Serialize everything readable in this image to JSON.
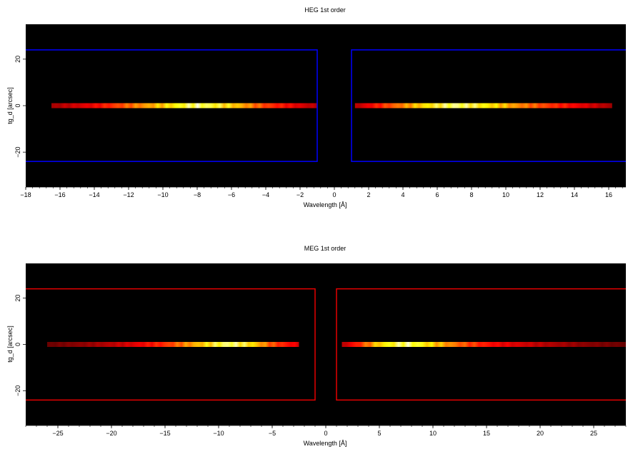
{
  "colors": {
    "background": "#000000",
    "heg_region": "#0000ff",
    "meg_region": "#e60000",
    "colormap": "hot"
  },
  "chart_data": [
    {
      "type": "heatmap",
      "title": "HEG 1st order",
      "xlabel": "Wavelength [Å]",
      "ylabel": "tg_d [arcsec]",
      "xlim": [
        -18,
        17
      ],
      "ylim": [
        -35,
        35
      ],
      "xticks": [
        -18,
        -16,
        -14,
        -12,
        -10,
        -8,
        -6,
        -4,
        -2,
        0,
        2,
        4,
        6,
        8,
        10,
        12,
        14,
        16
      ],
      "xtick_labels": [
        "−18",
        "−16",
        "−14",
        "−12",
        "−10",
        "−8",
        "−6",
        "−4",
        "−2",
        "0",
        "2",
        "4",
        "6",
        "8",
        "10",
        "12",
        "14",
        "16"
      ],
      "yticks": [
        -20,
        0,
        20
      ],
      "ytick_labels": [
        "−20",
        "0",
        "20"
      ],
      "grid": false,
      "trace": {
        "tg_d": 0,
        "segments": [
          {
            "x": [
              -16.5,
              -1.0
            ],
            "peak_x": -8.0
          },
          {
            "x": [
              1.2,
              16.2
            ],
            "peak_x": 7.0
          }
        ],
        "intensity_profile_x": [
          -16.5,
          -14,
          -12,
          -10,
          -8,
          -6,
          -4,
          -2,
          -1,
          1.2,
          3,
          5,
          7,
          9,
          11,
          13,
          15,
          16.2
        ],
        "intensity_profile": [
          0.28,
          0.42,
          0.62,
          0.8,
          1.0,
          0.82,
          0.55,
          0.38,
          0.3,
          0.3,
          0.55,
          0.8,
          1.0,
          0.85,
          0.66,
          0.5,
          0.36,
          0.28
        ]
      },
      "regions": [
        {
          "x": [
            -20,
            -1.0
          ],
          "tg_d": [
            -24,
            24
          ]
        },
        {
          "x": [
            1.0,
            20
          ],
          "tg_d": [
            -24,
            24
          ]
        }
      ]
    },
    {
      "type": "heatmap",
      "title": "MEG 1st order",
      "xlabel": "Wavelength [Å]",
      "ylabel": "tg_d [arcsec]",
      "xlim": [
        -28,
        28
      ],
      "ylim": [
        -35,
        35
      ],
      "xticks": [
        -25,
        -20,
        -15,
        -10,
        -5,
        0,
        5,
        10,
        15,
        20,
        25
      ],
      "xtick_labels": [
        "−25",
        "−20",
        "−15",
        "−10",
        "−5",
        "0",
        "5",
        "10",
        "15",
        "20",
        "25"
      ],
      "yticks": [
        -20,
        0,
        20
      ],
      "ytick_labels": [
        "−20",
        "0",
        "20"
      ],
      "grid": false,
      "trace": {
        "tg_d": 0,
        "segments": [
          {
            "x": [
              -26,
              -2.5
            ],
            "peak_x": -9.0
          },
          {
            "x": [
              1.5,
              28
            ],
            "peak_x": 7.5
          }
        ],
        "intensity_profile_x": [
          -26,
          -22,
          -18,
          -15,
          -12,
          -9,
          -7,
          -5,
          -2.5,
          1.5,
          3,
          5,
          7.5,
          10,
          13,
          16,
          20,
          24,
          28
        ],
        "intensity_profile": [
          0.18,
          0.26,
          0.38,
          0.52,
          0.76,
          1.0,
          0.85,
          0.58,
          0.38,
          0.3,
          0.5,
          0.82,
          1.0,
          0.8,
          0.58,
          0.42,
          0.32,
          0.24,
          0.18
        ]
      },
      "regions": [
        {
          "x": [
            -30,
            -1.0
          ],
          "tg_d": [
            -24,
            24
          ]
        },
        {
          "x": [
            1.0,
            30
          ],
          "tg_d": [
            -24,
            24
          ]
        }
      ]
    }
  ]
}
